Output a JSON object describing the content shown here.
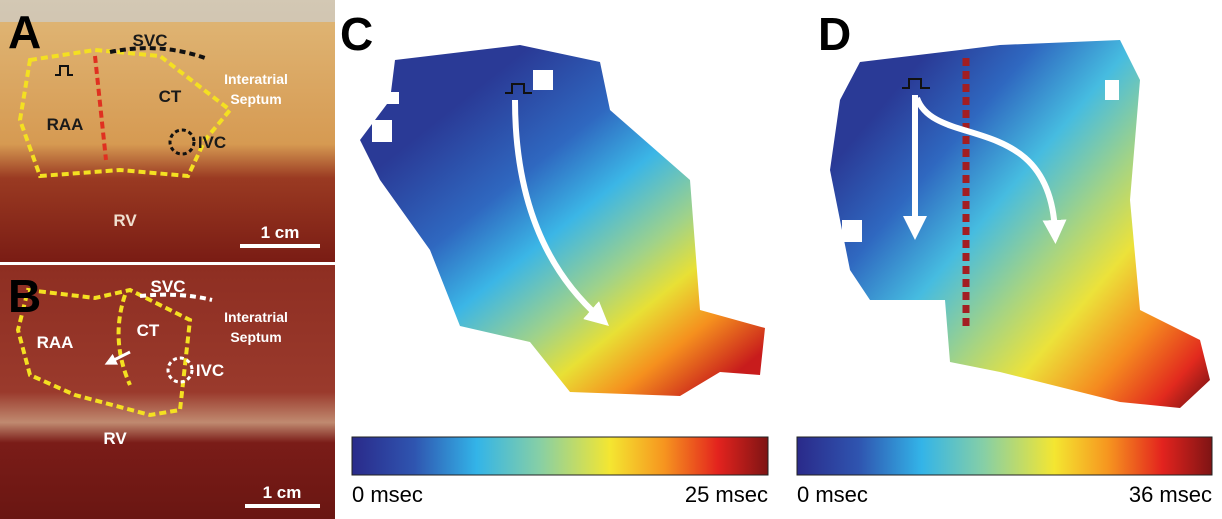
{
  "panels": [
    {
      "label": "A",
      "svc": "SVC",
      "septum_line1": "Interatrial",
      "septum_line2": "Septum",
      "ct": "CT",
      "raa": "RAA",
      "ivc": "IVC",
      "rv": "RV",
      "scale": "1 cm"
    },
    {
      "label": "B",
      "svc": "SVC",
      "septum_line1": "Interatrial",
      "septum_line2": "Septum",
      "ct": "CT",
      "raa": "RAA",
      "ivc": "IVC",
      "rv": "RV",
      "scale": "1 cm"
    },
    {
      "label": "C",
      "colorbar_min": "0 msec",
      "colorbar_max": "25 msec"
    },
    {
      "label": "D",
      "colorbar_min": "0 msec",
      "colorbar_max": "36 msec"
    }
  ]
}
